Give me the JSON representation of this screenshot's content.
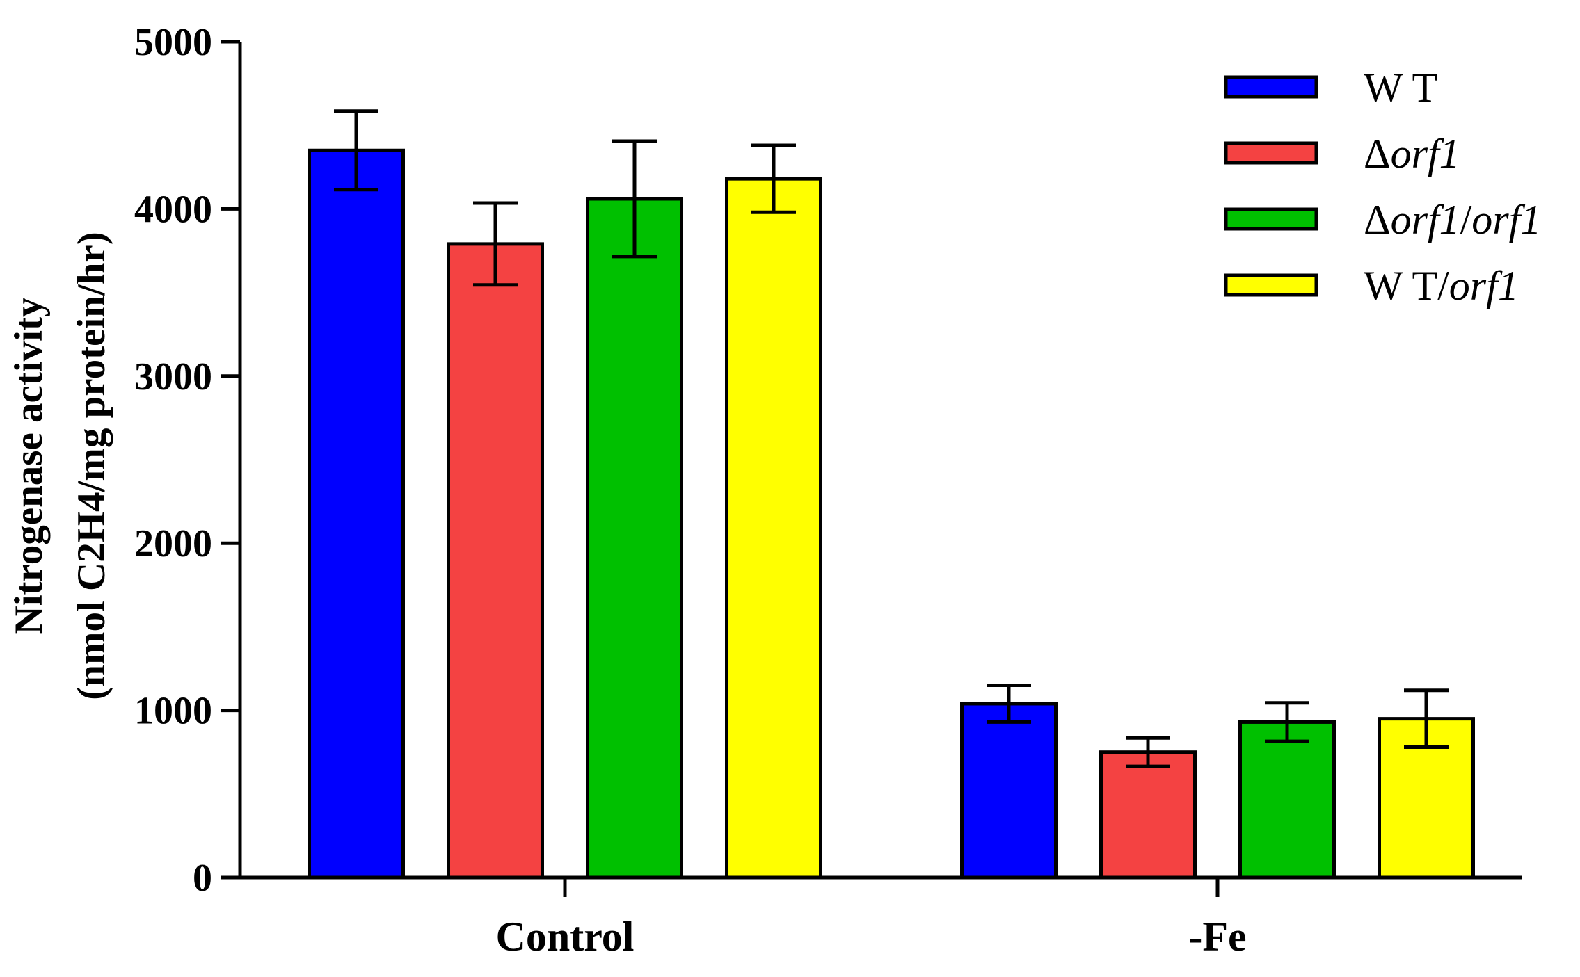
{
  "chart_data": {
    "type": "bar",
    "title": "",
    "xlabel": "",
    "ylabel": [
      "Nitrogenase activity",
      "(nmol C2H4/mg protein/hr)"
    ],
    "categories": [
      "Control",
      "-Fe"
    ],
    "ylim": [
      0,
      5000
    ],
    "yticks": [
      0,
      1000,
      2000,
      3000,
      4000,
      5000
    ],
    "legend_position": "top-right",
    "series": [
      {
        "name": "WT",
        "legend_parts": [
          {
            "t": "W T",
            "i": false
          }
        ],
        "color": "#0000FF",
        "values": [
          4350,
          1040
        ],
        "errors": [
          235,
          110
        ]
      },
      {
        "name": "Δorf1",
        "legend_parts": [
          {
            "t": "Δ",
            "i": false
          },
          {
            "t": "orf1",
            "i": true
          }
        ],
        "color": "#F44242",
        "values": [
          3790,
          750
        ],
        "errors": [
          245,
          85
        ]
      },
      {
        "name": "Δorf1/orf1",
        "legend_parts": [
          {
            "t": "Δ",
            "i": false
          },
          {
            "t": "orf1",
            "i": true
          },
          {
            "t": "/",
            "i": false
          },
          {
            "t": "orf1",
            "i": true
          }
        ],
        "color": "#00C000",
        "values": [
          4060,
          930
        ],
        "errors": [
          345,
          115
        ]
      },
      {
        "name": "WT/orf1",
        "legend_parts": [
          {
            "t": "W T/",
            "i": false
          },
          {
            "t": "orf1",
            "i": true
          }
        ],
        "color": "#FFFF00",
        "values": [
          4180,
          950
        ],
        "errors": [
          200,
          170
        ]
      }
    ]
  }
}
